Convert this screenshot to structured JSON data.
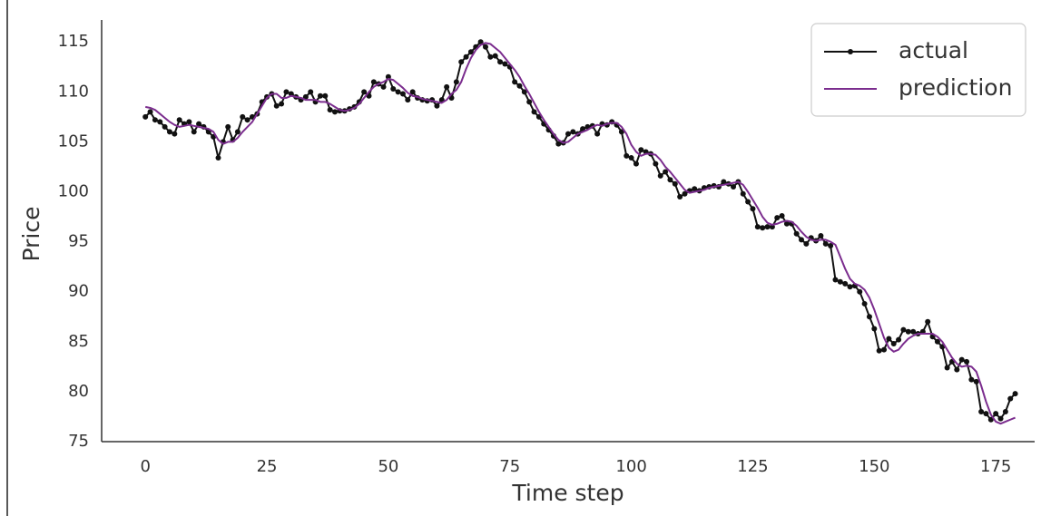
{
  "chart_data": {
    "type": "line",
    "xlabel": "Time step",
    "ylabel": "Price",
    "x": [
      0,
      1,
      2,
      3,
      4,
      5,
      6,
      7,
      8,
      9,
      10,
      11,
      12,
      13,
      14,
      15,
      16,
      17,
      18,
      19,
      20,
      21,
      22,
      23,
      24,
      25,
      26,
      27,
      28,
      29,
      30,
      31,
      32,
      33,
      34,
      35,
      36,
      37,
      38,
      39,
      40,
      41,
      42,
      43,
      44,
      45,
      46,
      47,
      48,
      49,
      50,
      51,
      52,
      53,
      54,
      55,
      56,
      57,
      58,
      59,
      60,
      61,
      62,
      63,
      64,
      65,
      66,
      67,
      68,
      69,
      70,
      71,
      72,
      73,
      74,
      75,
      76,
      77,
      78,
      79,
      80,
      81,
      82,
      83,
      84,
      85,
      86,
      87,
      88,
      89,
      90,
      91,
      92,
      93,
      94,
      95,
      96,
      97,
      98,
      99,
      100,
      101,
      102,
      103,
      104,
      105,
      106,
      107,
      108,
      109,
      110,
      111,
      112,
      113,
      114,
      115,
      116,
      117,
      118,
      119,
      120,
      121,
      122,
      123,
      124,
      125,
      126,
      127,
      128,
      129,
      130,
      131,
      132,
      133,
      134,
      135,
      136,
      137,
      138,
      139,
      140,
      141,
      142,
      143,
      144,
      145,
      146,
      147,
      148,
      149,
      150,
      151,
      152,
      153,
      154,
      155,
      156,
      157,
      158,
      159,
      160,
      161,
      162,
      163,
      164,
      165,
      166,
      167,
      168,
      169,
      170,
      171,
      172,
      173,
      174,
      175,
      176,
      177,
      178,
      179
    ],
    "series": [
      {
        "name": "actual",
        "color": "#111111",
        "marker": true,
        "values": [
          107.5,
          108,
          107.2,
          107,
          106.5,
          106,
          105.8,
          107.2,
          106.8,
          107,
          106,
          106.8,
          106.5,
          106,
          105.5,
          103.4,
          105,
          106.5,
          105.2,
          106,
          107.5,
          107.2,
          107.5,
          107.8,
          109,
          109.5,
          109.8,
          108.6,
          108.8,
          110,
          109.8,
          109.5,
          109.2,
          109.5,
          110,
          109,
          109.6,
          109.6,
          108.2,
          108,
          108.1,
          108.1,
          108.3,
          108.5,
          109,
          110,
          109.6,
          111,
          110.8,
          110.5,
          111.5,
          110.3,
          110,
          109.8,
          109.2,
          110,
          109.4,
          109.2,
          109.1,
          109.2,
          108.6,
          109.2,
          110.5,
          109.4,
          111,
          113,
          113.5,
          114,
          114.5,
          115,
          114.5,
          113.5,
          113.6,
          113,
          112.8,
          112.5,
          111,
          110.6,
          110,
          109,
          108,
          107.5,
          106.8,
          106.2,
          105.6,
          104.8,
          104.9,
          105.8,
          106,
          105.8,
          106.3,
          106.5,
          106.6,
          105.8,
          106.8,
          106.7,
          107,
          106.7,
          106,
          103.6,
          103.4,
          102.8,
          104.2,
          104,
          103.8,
          102.8,
          101.6,
          102,
          101.2,
          100.8,
          99.5,
          99.8,
          100.1,
          100.3,
          100.1,
          100.4,
          100.5,
          100.6,
          100.5,
          101,
          100.8,
          100.5,
          101,
          99.8,
          99,
          98.3,
          96.5,
          96.4,
          96.5,
          96.5,
          97.4,
          97.6,
          96.8,
          96.8,
          95.8,
          95.2,
          94.8,
          95.4,
          95.1,
          95.6,
          94.8,
          94.6,
          91.2,
          91,
          90.8,
          90.5,
          90.6,
          90,
          88.8,
          87.5,
          86.3,
          84.1,
          84.2,
          85.3,
          84.8,
          85.2,
          86.2,
          86,
          86,
          85.8,
          86,
          87,
          85.5,
          85,
          84.5,
          82.4,
          83,
          82.2,
          83.2,
          83,
          81.2,
          81,
          78,
          77.8,
          77.2,
          77.8,
          77.3,
          78,
          79.3,
          79.8
        ]
      },
      {
        "name": "prediction",
        "color": "#7b2d8e",
        "marker": false,
        "values": [
          108.5,
          108.4,
          108.2,
          107.8,
          107.4,
          107,
          106.7,
          106.5,
          106.6,
          106.7,
          106.6,
          106.5,
          106.4,
          106.3,
          106,
          105.2,
          104.8,
          105,
          105,
          105.4,
          106,
          106.5,
          107,
          107.8,
          108.6,
          109.4,
          109.8,
          109.8,
          109.4,
          109.4,
          109.6,
          109.5,
          109.4,
          109.2,
          109.2,
          109.2,
          109,
          109,
          108.8,
          108.5,
          108.2,
          108.1,
          108.2,
          108.4,
          108.8,
          109.4,
          110,
          110.5,
          110.8,
          111,
          111.3,
          111.2,
          110.8,
          110.4,
          109.9,
          109.6,
          109.5,
          109.3,
          109.2,
          109.1,
          109,
          108.9,
          109.2,
          109.8,
          110.2,
          111,
          112.3,
          113.4,
          114.2,
          114.7,
          114.9,
          114.8,
          114.4,
          114,
          113.4,
          112.8,
          112.2,
          111.5,
          110.6,
          109.8,
          108.9,
          108,
          107.2,
          106.5,
          105.8,
          105.2,
          104.9,
          105,
          105.4,
          105.8,
          106,
          106.2,
          106.5,
          106.7,
          106.6,
          106.8,
          106.9,
          106.9,
          106.5,
          105.8,
          104.7,
          104,
          103.6,
          103.8,
          103.8,
          103.7,
          103.2,
          102.5,
          102,
          101.4,
          100.8,
          100.2,
          99.9,
          100,
          100.1,
          100.2,
          100.4,
          100.5,
          100.6,
          100.7,
          100.8,
          100.9,
          101,
          100.7,
          100,
          99.2,
          98.4,
          97.5,
          96.9,
          96.7,
          96.8,
          97,
          97.1,
          97,
          96.6,
          96,
          95.5,
          95.2,
          95.1,
          95.2,
          95.2,
          95,
          94.7,
          93.5,
          92.3,
          91.3,
          90.8,
          90.6,
          90.2,
          89.4,
          88.2,
          86.8,
          85.4,
          84.4,
          84,
          84.2,
          84.8,
          85.3,
          85.6,
          85.8,
          85.8,
          85.8,
          85.8,
          85.5,
          85,
          84.2,
          83.4,
          82.8,
          82.5,
          82.6,
          82.5,
          82,
          80.6,
          79,
          77.7,
          77,
          76.8,
          77,
          77.2,
          77.4
        ]
      }
    ],
    "xlim": [
      -9,
      183
    ],
    "xticks": [
      0,
      25,
      50,
      75,
      100,
      125,
      150,
      175
    ],
    "ylim": [
      75,
      117.2
    ],
    "yticks": [
      75,
      80,
      85,
      90,
      95,
      100,
      105,
      110,
      115
    ],
    "grid": false,
    "legend": "upper right"
  }
}
